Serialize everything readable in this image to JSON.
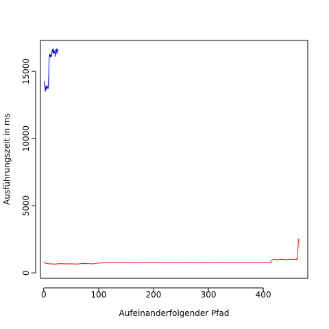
{
  "chart_data": {
    "type": "line",
    "title": "",
    "xlabel": "Aufeinanderfolgender Pfad",
    "ylabel": "Ausführungszeit in ms",
    "xlim": [
      -6,
      481
    ],
    "ylim": [
      -400,
      17300
    ],
    "x_ticks": [
      0,
      100,
      200,
      300,
      400
    ],
    "y_ticks": [
      0,
      5000,
      10000,
      15000
    ],
    "grid": false,
    "legend": "none",
    "series": [
      {
        "color": "#0000ff",
        "x": [
          1,
          2,
          3,
          4,
          5,
          6,
          7,
          8,
          9,
          10,
          11,
          12,
          13,
          14,
          15,
          16,
          17,
          18,
          19,
          20,
          21,
          22,
          23,
          24,
          25,
          26
        ],
        "y": [
          14300,
          13800,
          13500,
          13950,
          13650,
          13900,
          13800,
          13700,
          14600,
          16100,
          16300,
          16050,
          16250,
          16100,
          16500,
          16600,
          16300,
          16700,
          16400,
          16500,
          16100,
          16600,
          16700,
          16300,
          16650,
          16500
        ]
      },
      {
        "color": "#ff0000",
        "x": [
          1,
          3,
          5,
          10,
          20,
          30,
          40,
          50,
          60,
          70,
          80,
          90,
          95,
          97,
          100,
          110,
          120,
          130,
          140,
          150,
          160,
          170,
          180,
          190,
          200,
          210,
          220,
          230,
          240,
          250,
          260,
          270,
          280,
          290,
          300,
          310,
          320,
          330,
          340,
          350,
          360,
          370,
          380,
          390,
          400,
          410,
          413,
          415,
          420,
          425,
          430,
          435,
          440,
          445,
          450,
          455,
          458,
          460,
          461,
          462,
          463,
          464
        ],
        "y": [
          850,
          720,
          700,
          680,
          660,
          690,
          670,
          680,
          660,
          700,
          690,
          670,
          700,
          720,
          730,
          760,
          750,
          760,
          770,
          760,
          770,
          760,
          780,
          760,
          770,
          750,
          770,
          760,
          780,
          760,
          770,
          780,
          760,
          770,
          780,
          760,
          770,
          760,
          780,
          760,
          770,
          760,
          780,
          760,
          770,
          760,
          780,
          950,
          1020,
          980,
          1000,
          1010,
          980,
          1000,
          1020,
          990,
          1000,
          1050,
          980,
          1100,
          1600,
          2550
        ]
      }
    ]
  }
}
